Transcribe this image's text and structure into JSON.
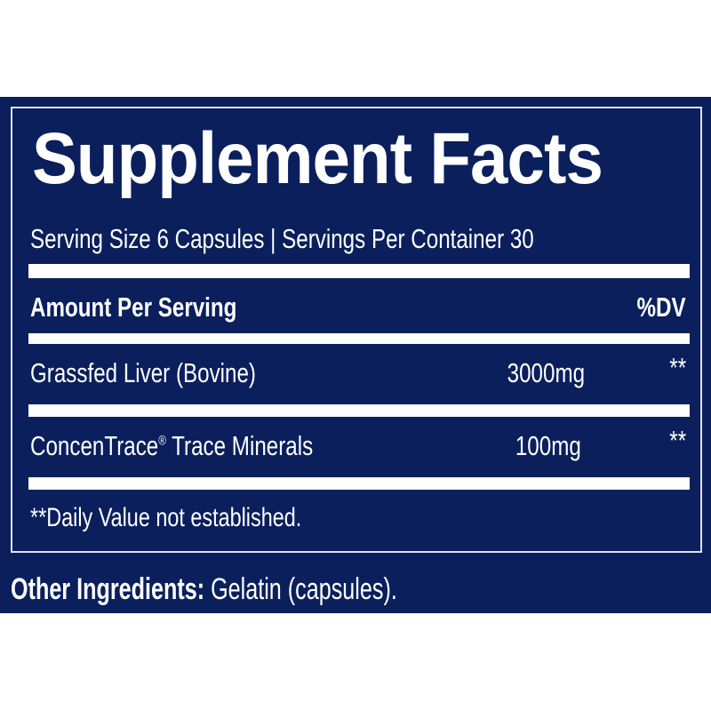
{
  "title": "Supplement Facts",
  "serving_info": "Serving Size 6 Capsules | Servings Per Container 30",
  "header": {
    "amount_label": "Amount Per Serving",
    "dv_label": "%DV"
  },
  "ingredients": [
    {
      "name": "Grassfed Liver (Bovine)",
      "trademark": "",
      "amount": "3000mg",
      "dv": "**"
    },
    {
      "name": "ConcenTrace",
      "trademark": "®",
      "name_suffix": " Trace Minerals",
      "amount": "100mg",
      "dv": "**"
    }
  ],
  "footnote": "**Daily Value not established.",
  "other_ingredients": {
    "label": "Other Ingredients:",
    "value": " Gelatin (capsules)."
  },
  "colors": {
    "background": "#0a1f5c",
    "text": "#ffffff"
  }
}
